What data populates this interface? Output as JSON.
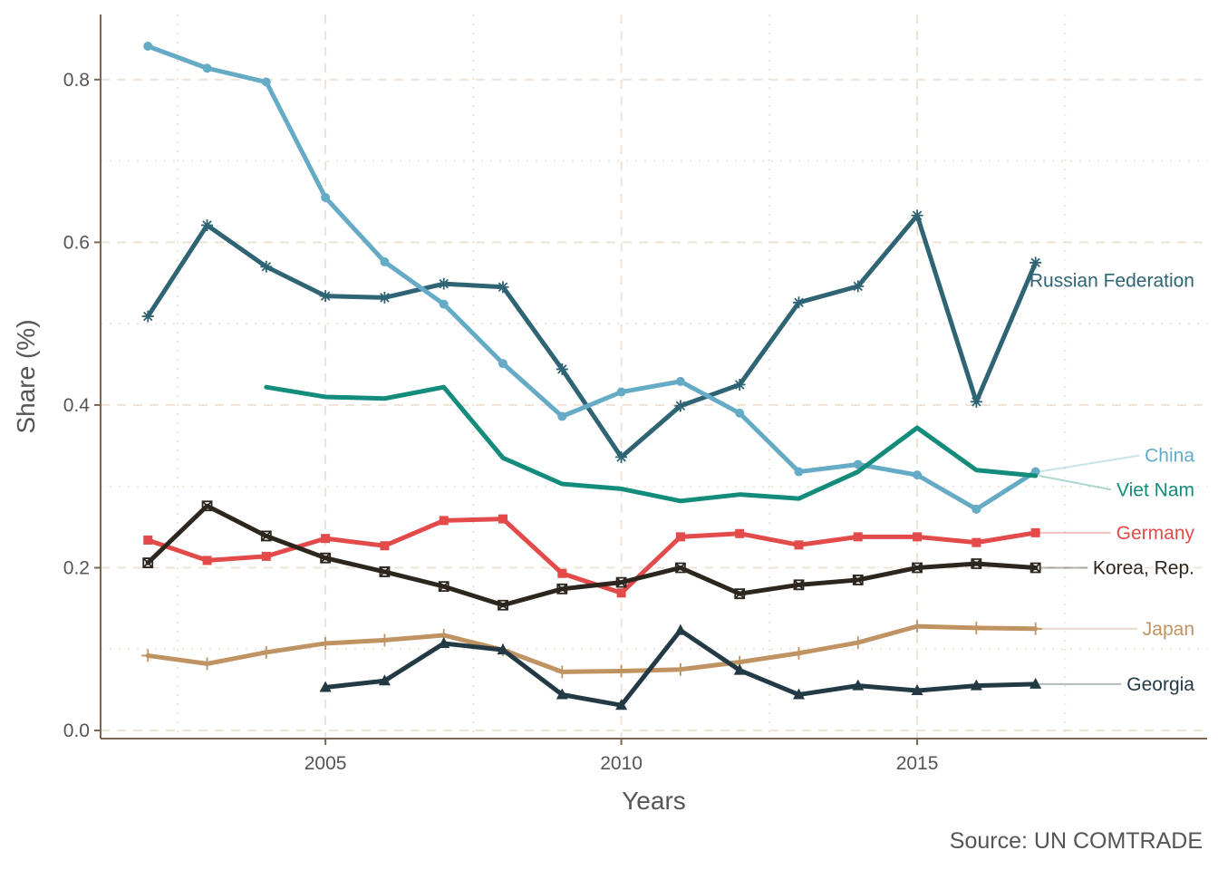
{
  "chart_data": {
    "type": "line",
    "xlabel": "Years",
    "ylabel": "Share (%)",
    "caption": "Source: UN COMTRADE",
    "xlim": [
      2001.2,
      2019.9
    ],
    "ylim": [
      -0.01,
      0.88
    ],
    "x_ticks": [
      2005,
      2010,
      2015
    ],
    "y_ticks": [
      0.0,
      0.2,
      0.4,
      0.6,
      0.8
    ],
    "y_tick_labels": [
      "0.0",
      "0.2",
      "0.4",
      "0.6",
      "0.8"
    ],
    "grid": true,
    "legend": "direct labels at right",
    "colors": {
      "axis": "#7a6552",
      "grid": "#efe3d6"
    },
    "series": [
      {
        "name": "Russian Federation",
        "color": "#2e6473",
        "marker": "asterisk",
        "x": [
          2002,
          2003,
          2004,
          2005,
          2006,
          2007,
          2008,
          2009,
          2010,
          2011,
          2012,
          2013,
          2014,
          2015,
          2016,
          2017
        ],
        "y": [
          0.509,
          0.621,
          0.57,
          0.534,
          0.532,
          0.549,
          0.545,
          0.444,
          0.336,
          0.399,
          0.425,
          0.526,
          0.546,
          0.633,
          0.404,
          0.575
        ],
        "label_y": 0.553
      },
      {
        "name": "China",
        "color": "#66abc5",
        "marker": "circle",
        "x": [
          2002,
          2003,
          2004,
          2005,
          2006,
          2007,
          2008,
          2009,
          2010,
          2011,
          2012,
          2013,
          2014,
          2015,
          2016,
          2017
        ],
        "y": [
          0.841,
          0.814,
          0.797,
          0.655,
          0.576,
          0.524,
          0.451,
          0.386,
          0.416,
          0.429,
          0.39,
          0.318,
          0.327,
          0.314,
          0.272,
          0.318
        ],
        "label_y": 0.338
      },
      {
        "name": "Viet Nam",
        "color": "#148c7b",
        "marker": "none",
        "x": [
          2004,
          2005,
          2006,
          2007,
          2008,
          2009,
          2010,
          2011,
          2012,
          2013,
          2014,
          2015,
          2016,
          2017
        ],
        "y": [
          0.422,
          0.41,
          0.408,
          0.422,
          0.335,
          0.303,
          0.297,
          0.282,
          0.29,
          0.285,
          0.318,
          0.372,
          0.32,
          0.313
        ],
        "label_y": 0.296
      },
      {
        "name": "Germany",
        "color": "#e34a4a",
        "marker": "square",
        "x": [
          2002,
          2003,
          2004,
          2005,
          2006,
          2007,
          2008,
          2009,
          2010,
          2011,
          2012,
          2013,
          2014,
          2015,
          2016,
          2017
        ],
        "y": [
          0.234,
          0.209,
          0.214,
          0.236,
          0.227,
          0.258,
          0.26,
          0.193,
          0.169,
          0.238,
          0.242,
          0.228,
          0.238,
          0.238,
          0.231,
          0.243
        ],
        "label_y": 0.243
      },
      {
        "name": "Korea, Rep.",
        "color": "#2d261f",
        "marker": "boxx",
        "x": [
          2002,
          2003,
          2004,
          2005,
          2006,
          2007,
          2008,
          2009,
          2010,
          2011,
          2012,
          2013,
          2014,
          2015,
          2016,
          2017
        ],
        "y": [
          0.206,
          0.276,
          0.239,
          0.212,
          0.195,
          0.177,
          0.154,
          0.174,
          0.182,
          0.2,
          0.168,
          0.179,
          0.185,
          0.2,
          0.205,
          0.2
        ],
        "label_y": 0.2
      },
      {
        "name": "Japan",
        "color": "#c09363",
        "marker": "plus",
        "x": [
          2002,
          2003,
          2004,
          2005,
          2006,
          2007,
          2008,
          2009,
          2010,
          2011,
          2012,
          2013,
          2014,
          2015,
          2016,
          2017
        ],
        "y": [
          0.092,
          0.082,
          0.096,
          0.107,
          0.111,
          0.117,
          0.099,
          0.072,
          0.073,
          0.075,
          0.084,
          0.095,
          0.108,
          0.128,
          0.126,
          0.125
        ],
        "label_y": 0.125
      },
      {
        "name": "Georgia",
        "color": "#233a45",
        "marker": "triangle",
        "x": [
          2005,
          2006,
          2007,
          2008,
          2009,
          2010,
          2011,
          2012,
          2013,
          2014,
          2015,
          2016,
          2017
        ],
        "y": [
          0.053,
          0.061,
          0.107,
          0.099,
          0.044,
          0.031,
          0.123,
          0.074,
          0.044,
          0.055,
          0.049,
          0.055,
          0.057
        ],
        "label_y": 0.057
      }
    ]
  }
}
